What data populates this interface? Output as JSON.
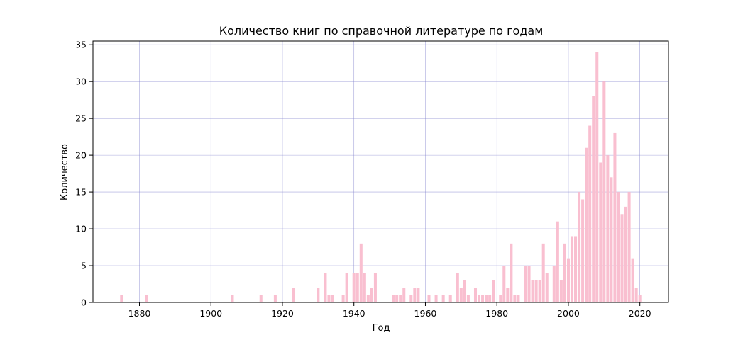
{
  "chart_data": {
    "type": "bar",
    "title": "Количество книг по справочной литературе по годам",
    "xlabel": "Год",
    "ylabel": "Количество",
    "xlim": [
      1867,
      2028
    ],
    "ylim": [
      0,
      35.5
    ],
    "xticks": [
      1880,
      1900,
      1920,
      1940,
      1960,
      1980,
      2000,
      2020
    ],
    "yticks": [
      0,
      5,
      10,
      15,
      20,
      25,
      30,
      35
    ],
    "grid": true,
    "bar_color": "#f9bfd0",
    "grid_color": "#8080cc",
    "x": [
      1875,
      1882,
      1906,
      1914,
      1918,
      1923,
      1930,
      1932,
      1933,
      1934,
      1937,
      1938,
      1940,
      1941,
      1942,
      1943,
      1944,
      1945,
      1946,
      1951,
      1952,
      1953,
      1954,
      1956,
      1957,
      1958,
      1961,
      1963,
      1965,
      1967,
      1969,
      1970,
      1971,
      1972,
      1974,
      1975,
      1976,
      1977,
      1978,
      1979,
      1981,
      1982,
      1983,
      1984,
      1985,
      1986,
      1988,
      1989,
      1990,
      1991,
      1992,
      1993,
      1994,
      1996,
      1997,
      1998,
      1999,
      2000,
      2001,
      2002,
      2003,
      2004,
      2005,
      2006,
      2007,
      2008,
      2009,
      2010,
      2011,
      2012,
      2013,
      2014,
      2015,
      2016,
      2017,
      2018,
      2019,
      2020
    ],
    "values": [
      1,
      1,
      1,
      1,
      1,
      2,
      2,
      4,
      1,
      1,
      1,
      4,
      4,
      4,
      8,
      4,
      1,
      2,
      4,
      1,
      1,
      1,
      2,
      1,
      2,
      2,
      1,
      1,
      1,
      1,
      4,
      2,
      3,
      1,
      2,
      1,
      1,
      1,
      1,
      3,
      1,
      5,
      2,
      8,
      1,
      1,
      5,
      5,
      3,
      3,
      3,
      8,
      4,
      5,
      11,
      3,
      8,
      6,
      9,
      9,
      15,
      14,
      21,
      24,
      28,
      34,
      19,
      30,
      20,
      17,
      23,
      15,
      12,
      13,
      15,
      6,
      2,
      1
    ]
  }
}
